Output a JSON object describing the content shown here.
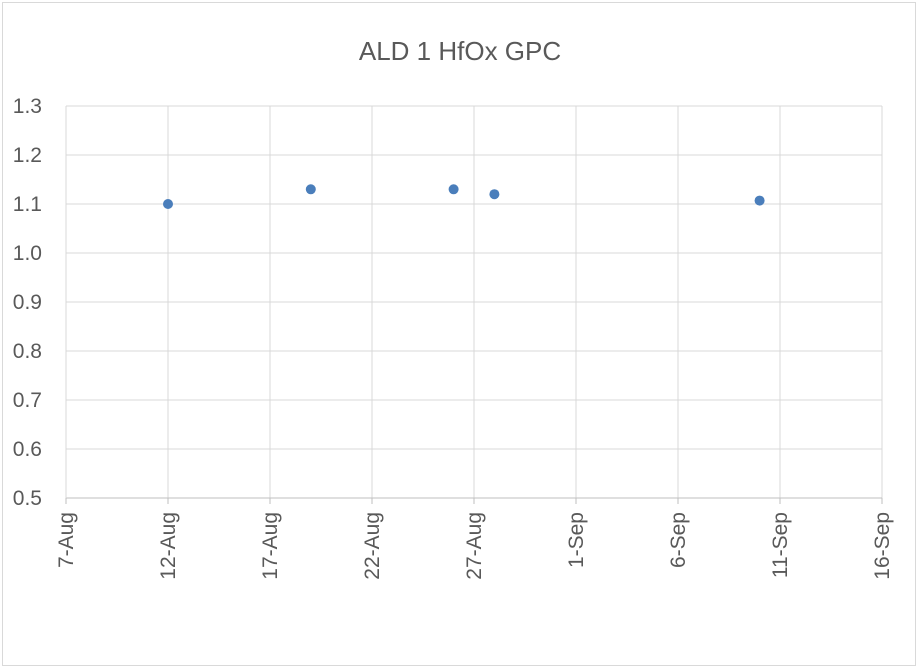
{
  "chart_data": {
    "type": "scatter",
    "title": "ALD 1 HfOx GPC",
    "xlabel": "",
    "ylabel": "",
    "x_axis_type": "date",
    "xlim": [
      "2017-08-07",
      "2017-09-16"
    ],
    "x_tick_labels": [
      "7-Aug",
      "12-Aug",
      "17-Aug",
      "22-Aug",
      "27-Aug",
      "1-Sep",
      "6-Sep",
      "11-Sep",
      "16-Sep"
    ],
    "ylim": [
      0.5,
      1.3
    ],
    "y_tick_labels": [
      "0.5",
      "0.6",
      "0.7",
      "0.8",
      "0.9",
      "1.0",
      "1.1",
      "1.2",
      "1.3"
    ],
    "grid": true,
    "legend": "none",
    "marker_color": "#4a7ebb",
    "points": [
      {
        "x": "2017-08-12",
        "y": 1.1
      },
      {
        "x": "2017-08-19",
        "y": 1.13
      },
      {
        "x": "2017-08-26",
        "y": 1.13
      },
      {
        "x": "2017-08-28",
        "y": 1.12
      },
      {
        "x": "2017-09-10",
        "y": 1.107
      }
    ]
  }
}
